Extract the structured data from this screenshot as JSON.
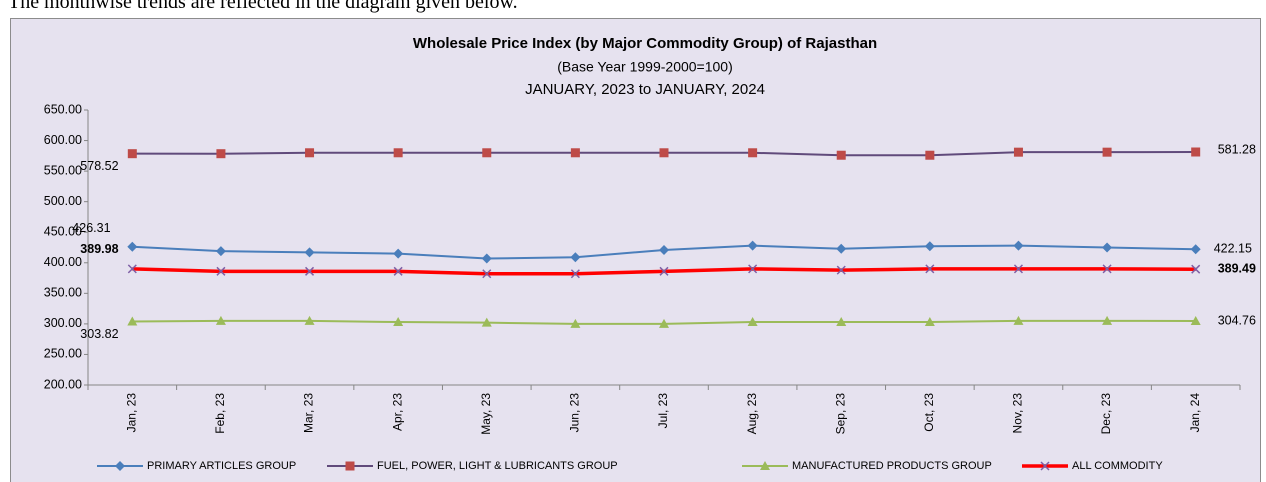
{
  "intro": "The monthwise trends are reflected in the diagram given below.",
  "chart_data": {
    "type": "line",
    "title": "Wholesale Price Index (by Major Commodity Group) of Rajasthan",
    "subtitle": "(Base Year 1999-2000=100)",
    "period": "JANUARY, 2023 to JANUARY, 2024",
    "categories": [
      "Jan, 23",
      "Feb, 23",
      "Mar, 23",
      "Apr, 23",
      "May, 23",
      "Jun, 23",
      "Jul, 23",
      "Aug, 23",
      "Sep, 23",
      "Oct, 23",
      "Nov, 23",
      "Dec, 23",
      "Jan, 24"
    ],
    "ylim": [
      200,
      650
    ],
    "yticks": [
      {
        "value": 200,
        "label": "200.00"
      },
      {
        "value": 250,
        "label": "250.00"
      },
      {
        "value": 300,
        "label": "300.00"
      },
      {
        "value": 350,
        "label": "350.00"
      },
      {
        "value": 400,
        "label": "400.00"
      },
      {
        "value": 450,
        "label": "450.00"
      },
      {
        "value": 500,
        "label": "500.00"
      },
      {
        "value": 550,
        "label": "550.00"
      },
      {
        "value": 600,
        "label": "600.00"
      },
      {
        "value": 650,
        "label": "650.00"
      }
    ],
    "grid": false,
    "series": [
      {
        "name": "PRIMARY ARTICLES GROUP",
        "color": "#4a7ebb",
        "marker_color": "#4a7ebb",
        "marker": "diamond",
        "values": [
          426.31,
          419,
          417,
          415,
          407,
          409,
          421,
          428,
          423,
          427,
          428,
          425,
          422.15
        ]
      },
      {
        "name": "FUEL, POWER, LIGHT & LUBRICANTS GROUP",
        "color": "#604a7b",
        "marker_color": "#be4b48",
        "marker": "square",
        "values": [
          578.52,
          578.5,
          580,
          580,
          580,
          580,
          580,
          580,
          576,
          576,
          581,
          581,
          581.28
        ]
      },
      {
        "name": "MANUFACTURED PRODUCTS GROUP",
        "color": "#9bbb59",
        "marker_color": "#9bbb59",
        "marker": "triangle",
        "values": [
          303.82,
          305,
          305,
          303,
          302,
          300,
          300,
          303,
          303,
          303,
          305,
          305,
          304.76
        ]
      },
      {
        "name": "ALL COMMODITY",
        "color": "#ff0000",
        "marker_color": "#7e5fa5",
        "marker": "x",
        "values": [
          389.98,
          386,
          386,
          386,
          382,
          382,
          386,
          390,
          388,
          390,
          390,
          390,
          389.49
        ]
      }
    ]
  }
}
